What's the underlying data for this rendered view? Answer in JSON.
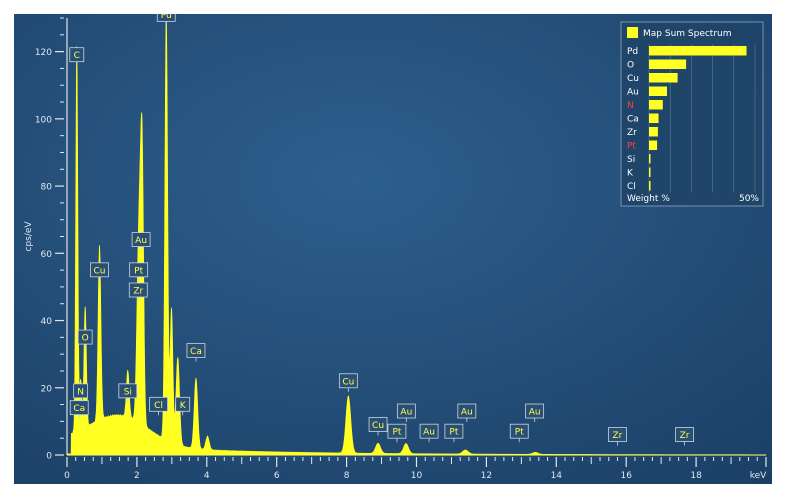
{
  "chart_data": {
    "type": "area",
    "title": "",
    "xlabel": "keV",
    "ylabel": "cps/eV",
    "xlim": [
      0,
      20
    ],
    "ylim": [
      0,
      130
    ],
    "x_ticks": [
      0,
      2,
      4,
      6,
      8,
      10,
      12,
      14,
      16,
      18
    ],
    "y_ticks": [
      0,
      20,
      40,
      60,
      80,
      100,
      120
    ],
    "grid": false,
    "series": [
      {
        "name": "Map Sum Spectrum",
        "color": "#ffff22",
        "background": "0.1 keV",
        "peaks": [
          {
            "x": 0.28,
            "y": 115,
            "w": 0.03
          },
          {
            "x": 0.39,
            "y": 15,
            "w": 0.03
          },
          {
            "x": 0.52,
            "y": 36,
            "w": 0.035
          },
          {
            "x": 0.93,
            "y": 52,
            "w": 0.04
          },
          {
            "x": 1.74,
            "y": 14,
            "w": 0.04
          },
          {
            "x": 2.04,
            "y": 42,
            "w": 0.05
          },
          {
            "x": 2.12,
            "y": 52,
            "w": 0.05
          },
          {
            "x": 2.16,
            "y": 44,
            "w": 0.04
          },
          {
            "x": 2.84,
            "y": 127,
            "w": 0.04
          },
          {
            "x": 2.99,
            "y": 40,
            "w": 0.04
          },
          {
            "x": 3.17,
            "y": 26,
            "w": 0.05
          },
          {
            "x": 3.69,
            "y": 21,
            "w": 0.05
          },
          {
            "x": 4.02,
            "y": 4,
            "w": 0.05
          },
          {
            "x": 8.05,
            "y": 17,
            "w": 0.07
          },
          {
            "x": 8.9,
            "y": 3,
            "w": 0.07
          },
          {
            "x": 9.7,
            "y": 3,
            "w": 0.07
          },
          {
            "x": 11.4,
            "y": 1.2,
            "w": 0.08
          },
          {
            "x": 13.4,
            "y": 0.6,
            "w": 0.08
          }
        ]
      }
    ],
    "annotations": [
      {
        "label": "Pd",
        "x": 2.84,
        "y": 129
      },
      {
        "label": "C",
        "x": 0.28,
        "y": 117
      },
      {
        "label": "Au",
        "x": 2.12,
        "y": 62
      },
      {
        "label": "Cu",
        "x": 0.93,
        "y": 53
      },
      {
        "label": "Pt",
        "x": 2.05,
        "y": 53
      },
      {
        "label": "Zr",
        "x": 2.04,
        "y": 47
      },
      {
        "label": "O",
        "x": 0.52,
        "y": 33
      },
      {
        "label": "Ca",
        "x": 3.69,
        "y": 29
      },
      {
        "label": "N",
        "x": 0.39,
        "y": 17
      },
      {
        "label": "Si",
        "x": 1.74,
        "y": 17
      },
      {
        "label": "Ca",
        "x": 0.35,
        "y": 12
      },
      {
        "label": "Cl",
        "x": 2.62,
        "y": 13
      },
      {
        "label": "K",
        "x": 3.31,
        "y": 13
      },
      {
        "label": "Cu",
        "x": 8.05,
        "y": 20
      },
      {
        "label": "Cu",
        "x": 8.9,
        "y": 7
      },
      {
        "label": "Pt",
        "x": 9.44,
        "y": 5
      },
      {
        "label": "Au",
        "x": 9.71,
        "y": 11
      },
      {
        "label": "Au",
        "x": 10.36,
        "y": 5
      },
      {
        "label": "Pt",
        "x": 11.07,
        "y": 5
      },
      {
        "label": "Au",
        "x": 11.44,
        "y": 11
      },
      {
        "label": "Pt",
        "x": 12.94,
        "y": 5
      },
      {
        "label": "Au",
        "x": 13.38,
        "y": 11
      },
      {
        "label": "Zr",
        "x": 15.75,
        "y": 4
      },
      {
        "label": "Zr",
        "x": 17.67,
        "y": 4
      }
    ],
    "legend": {
      "placement": "top-right",
      "title": "Map Sum Spectrum",
      "footer_label": "Weight %",
      "footer_max": "50%",
      "max": 50,
      "elements": [
        {
          "label": "Pd",
          "value": 46,
          "color": "#ffffff"
        },
        {
          "label": "O",
          "value": 17.5,
          "color": "#ffffff"
        },
        {
          "label": "Cu",
          "value": 13.5,
          "color": "#ffffff"
        },
        {
          "label": "Au",
          "value": 8.5,
          "color": "#ffffff"
        },
        {
          "label": "N",
          "value": 6.5,
          "color": "#ff4040"
        },
        {
          "label": "Ca",
          "value": 4.5,
          "color": "#ffffff"
        },
        {
          "label": "Zr",
          "value": 4.2,
          "color": "#ffffff"
        },
        {
          "label": "Pt",
          "value": 3.8,
          "color": "#ff4040"
        },
        {
          "label": "Si",
          "value": 0.6,
          "color": "#ffffff"
        },
        {
          "label": "K",
          "value": 0.4,
          "color": "#ffffff"
        },
        {
          "label": "Cl",
          "value": 0.4,
          "color": "#ffffff"
        }
      ]
    }
  }
}
